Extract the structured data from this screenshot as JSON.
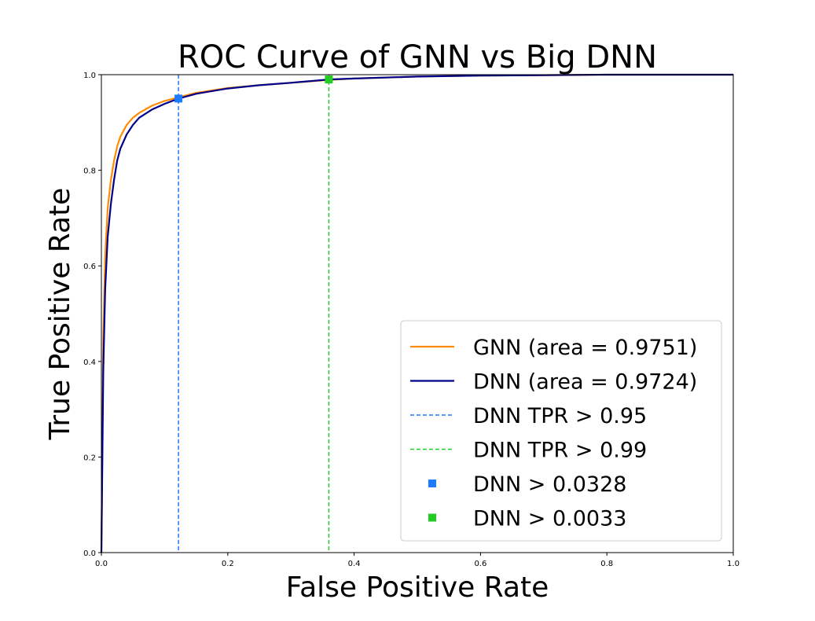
{
  "chart_data": {
    "type": "line",
    "title": "ROC Curve of GNN vs Big DNN",
    "xlabel": "False Positive Rate",
    "ylabel": "True Positive Rate",
    "xlim": [
      0.0,
      1.0
    ],
    "ylim": [
      0.0,
      1.0
    ],
    "xticks": [
      "0.0",
      "0.2",
      "0.4",
      "0.6",
      "0.8",
      "1.0"
    ],
    "yticks": [
      "0.0",
      "0.2",
      "0.4",
      "0.6",
      "0.8",
      "1.0"
    ],
    "grid": false,
    "legend_position": "lower-right",
    "series": [
      {
        "name": "GNN (area = 0.9751)",
        "kind": "line",
        "color": "#ff8c00",
        "x": [
          0.0,
          0.003,
          0.006,
          0.01,
          0.015,
          0.02,
          0.025,
          0.03,
          0.04,
          0.05,
          0.06,
          0.08,
          0.1,
          0.12,
          0.15,
          0.2,
          0.25,
          0.3,
          0.36,
          0.4,
          0.5,
          0.6,
          0.7,
          0.8,
          0.9,
          1.0
        ],
        "y": [
          0.0,
          0.45,
          0.62,
          0.72,
          0.78,
          0.82,
          0.85,
          0.87,
          0.895,
          0.91,
          0.92,
          0.935,
          0.945,
          0.952,
          0.962,
          0.972,
          0.978,
          0.983,
          0.989,
          0.992,
          0.996,
          0.998,
          0.999,
          1.0,
          1.0,
          1.0
        ]
      },
      {
        "name": "DNN (area = 0.9724)",
        "kind": "line",
        "color": "#00008b",
        "x": [
          0.0,
          0.003,
          0.006,
          0.01,
          0.015,
          0.02,
          0.025,
          0.03,
          0.04,
          0.05,
          0.06,
          0.08,
          0.1,
          0.122,
          0.15,
          0.2,
          0.25,
          0.3,
          0.36,
          0.4,
          0.5,
          0.6,
          0.7,
          0.8,
          0.9,
          1.0
        ],
        "y": [
          0.0,
          0.38,
          0.55,
          0.66,
          0.73,
          0.78,
          0.82,
          0.845,
          0.875,
          0.895,
          0.91,
          0.927,
          0.939,
          0.95,
          0.96,
          0.971,
          0.978,
          0.983,
          0.99,
          0.992,
          0.996,
          0.998,
          0.999,
          1.0,
          1.0,
          1.0
        ]
      },
      {
        "name": "DNN TPR > 0.95",
        "kind": "vline",
        "color": "#1e7bff",
        "x": 0.122
      },
      {
        "name": "DNN TPR > 0.99",
        "kind": "vline",
        "color": "#22cc22",
        "x": 0.36
      },
      {
        "name": "DNN > 0.0328",
        "kind": "marker",
        "color": "#1e7bff",
        "x": 0.122,
        "y": 0.95
      },
      {
        "name": "DNN > 0.0033",
        "kind": "marker",
        "color": "#22cc22",
        "x": 0.36,
        "y": 0.99
      }
    ]
  }
}
